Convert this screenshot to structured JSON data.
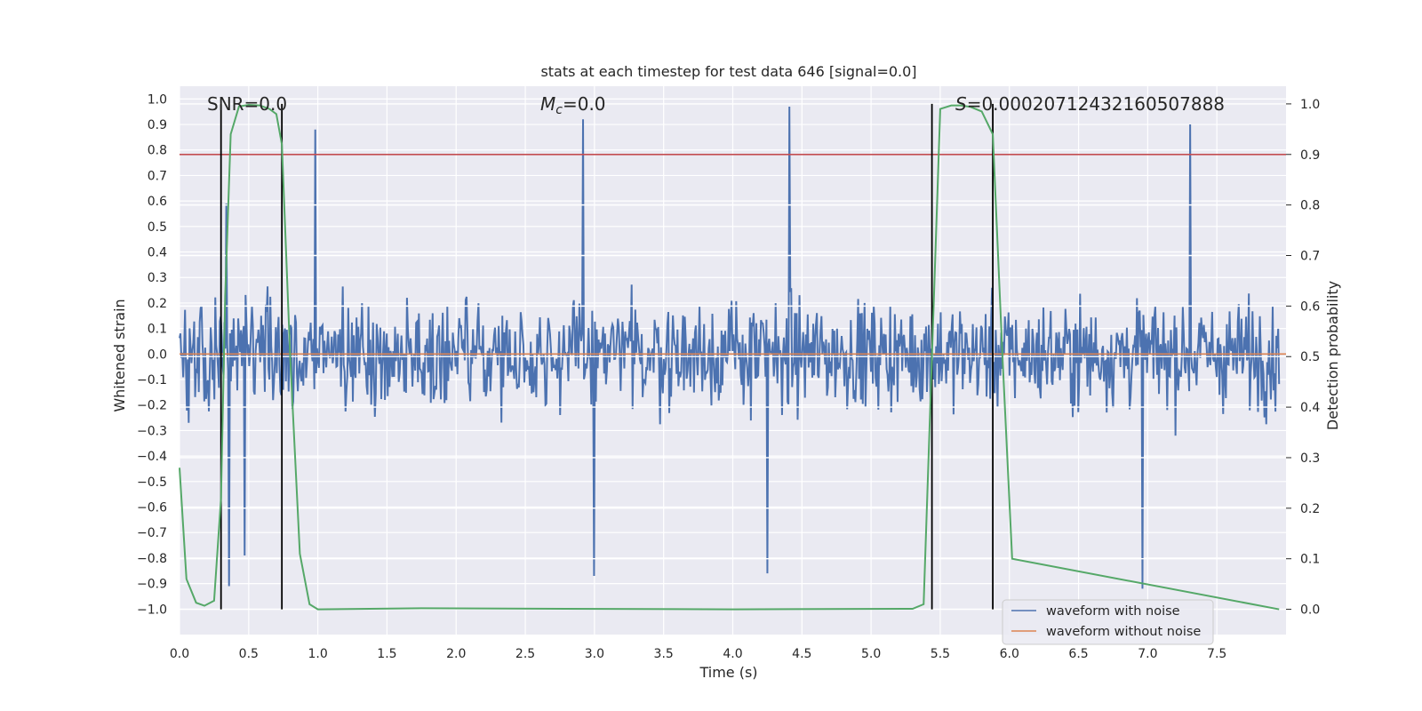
{
  "chart_data": {
    "type": "line",
    "title": "stats at each timestep for test data 646 [signal=0.0]",
    "xlabel": "Time (s)",
    "ylabel": "Whitened strain",
    "ylabel_right": "Detection probability",
    "xlim": [
      0.0,
      8.0
    ],
    "ylim": [
      -1.1,
      1.05
    ],
    "ylim_right": [
      -0.05,
      1.035
    ],
    "x_ticks": [
      "0.0",
      "0.5",
      "1.0",
      "1.5",
      "2.0",
      "2.5",
      "3.0",
      "3.5",
      "4.0",
      "4.5",
      "5.0",
      "5.5",
      "6.0",
      "6.5",
      "7.0",
      "7.5"
    ],
    "y_ticks": [
      "1.0",
      "0.9",
      "0.8",
      "0.7",
      "0.6",
      "0.5",
      "0.4",
      "0.3",
      "0.2",
      "0.1",
      "0.0",
      "−0.1",
      "−0.2",
      "−0.3",
      "−0.4",
      "−0.5",
      "−0.6",
      "−0.7",
      "−0.8",
      "−0.9",
      "−1.0"
    ],
    "y_ticks_right": [
      "1.0",
      "0.9",
      "0.8",
      "0.7",
      "0.6",
      "0.5",
      "0.4",
      "0.3",
      "0.2",
      "0.1",
      "0.0"
    ],
    "grid": true,
    "annotations": {
      "snr": "SNR=0.0",
      "mc_symbol": "M",
      "mc_sub": "c",
      "mc_value": "=0.0",
      "s_symbol": "S",
      "s_value": "=0.00020712432160507888"
    },
    "threshold_line": {
      "y_right": 0.9,
      "color": "#c44e52"
    },
    "vertical_markers": [
      0.3,
      0.74,
      5.44,
      5.88
    ],
    "series": [
      {
        "name": "waveform with noise",
        "color": "#4c72b0",
        "envelope_noise": {
          "std": 0.2,
          "sample_count": 1200,
          "seed": 646
        },
        "notable_peaks": [
          [
            0.34,
            0.59
          ],
          [
            0.98,
            0.88
          ],
          [
            2.92,
            0.92
          ],
          [
            4.41,
            0.97
          ],
          [
            7.31,
            0.9
          ]
        ],
        "notable_troughs": [
          [
            0.36,
            -0.91
          ],
          [
            0.47,
            -0.79
          ],
          [
            3.0,
            -0.87
          ],
          [
            4.25,
            -0.86
          ],
          [
            6.96,
            -0.92
          ]
        ]
      },
      {
        "name": "waveform without noise",
        "color": "#dd8452",
        "y": 0.0
      },
      {
        "name": "detection probability",
        "axis": "right",
        "color": "#55a868",
        "x": [
          0.0,
          0.05,
          0.12,
          0.18,
          0.25,
          0.3,
          0.33,
          0.37,
          0.43,
          0.5,
          0.58,
          0.65,
          0.7,
          0.74,
          0.8,
          0.87,
          0.94,
          1.0,
          1.75,
          4.0,
          5.3,
          5.38,
          5.44,
          5.5,
          5.58,
          5.65,
          5.72,
          5.8,
          5.88,
          5.95,
          6.02,
          7.95
        ],
        "y": [
          0.28,
          0.06,
          0.013,
          0.007,
          0.017,
          0.22,
          0.62,
          0.94,
          0.995,
          0.998,
          0.997,
          0.99,
          0.98,
          0.92,
          0.5,
          0.11,
          0.01,
          0.0,
          0.002,
          0.0,
          0.001,
          0.01,
          0.5,
          0.99,
          0.997,
          0.997,
          0.994,
          0.985,
          0.94,
          0.5,
          0.1,
          0.0
        ]
      }
    ],
    "legend": {
      "placement": "bottom-right",
      "entries": [
        "waveform with noise",
        "waveform without noise"
      ]
    }
  }
}
